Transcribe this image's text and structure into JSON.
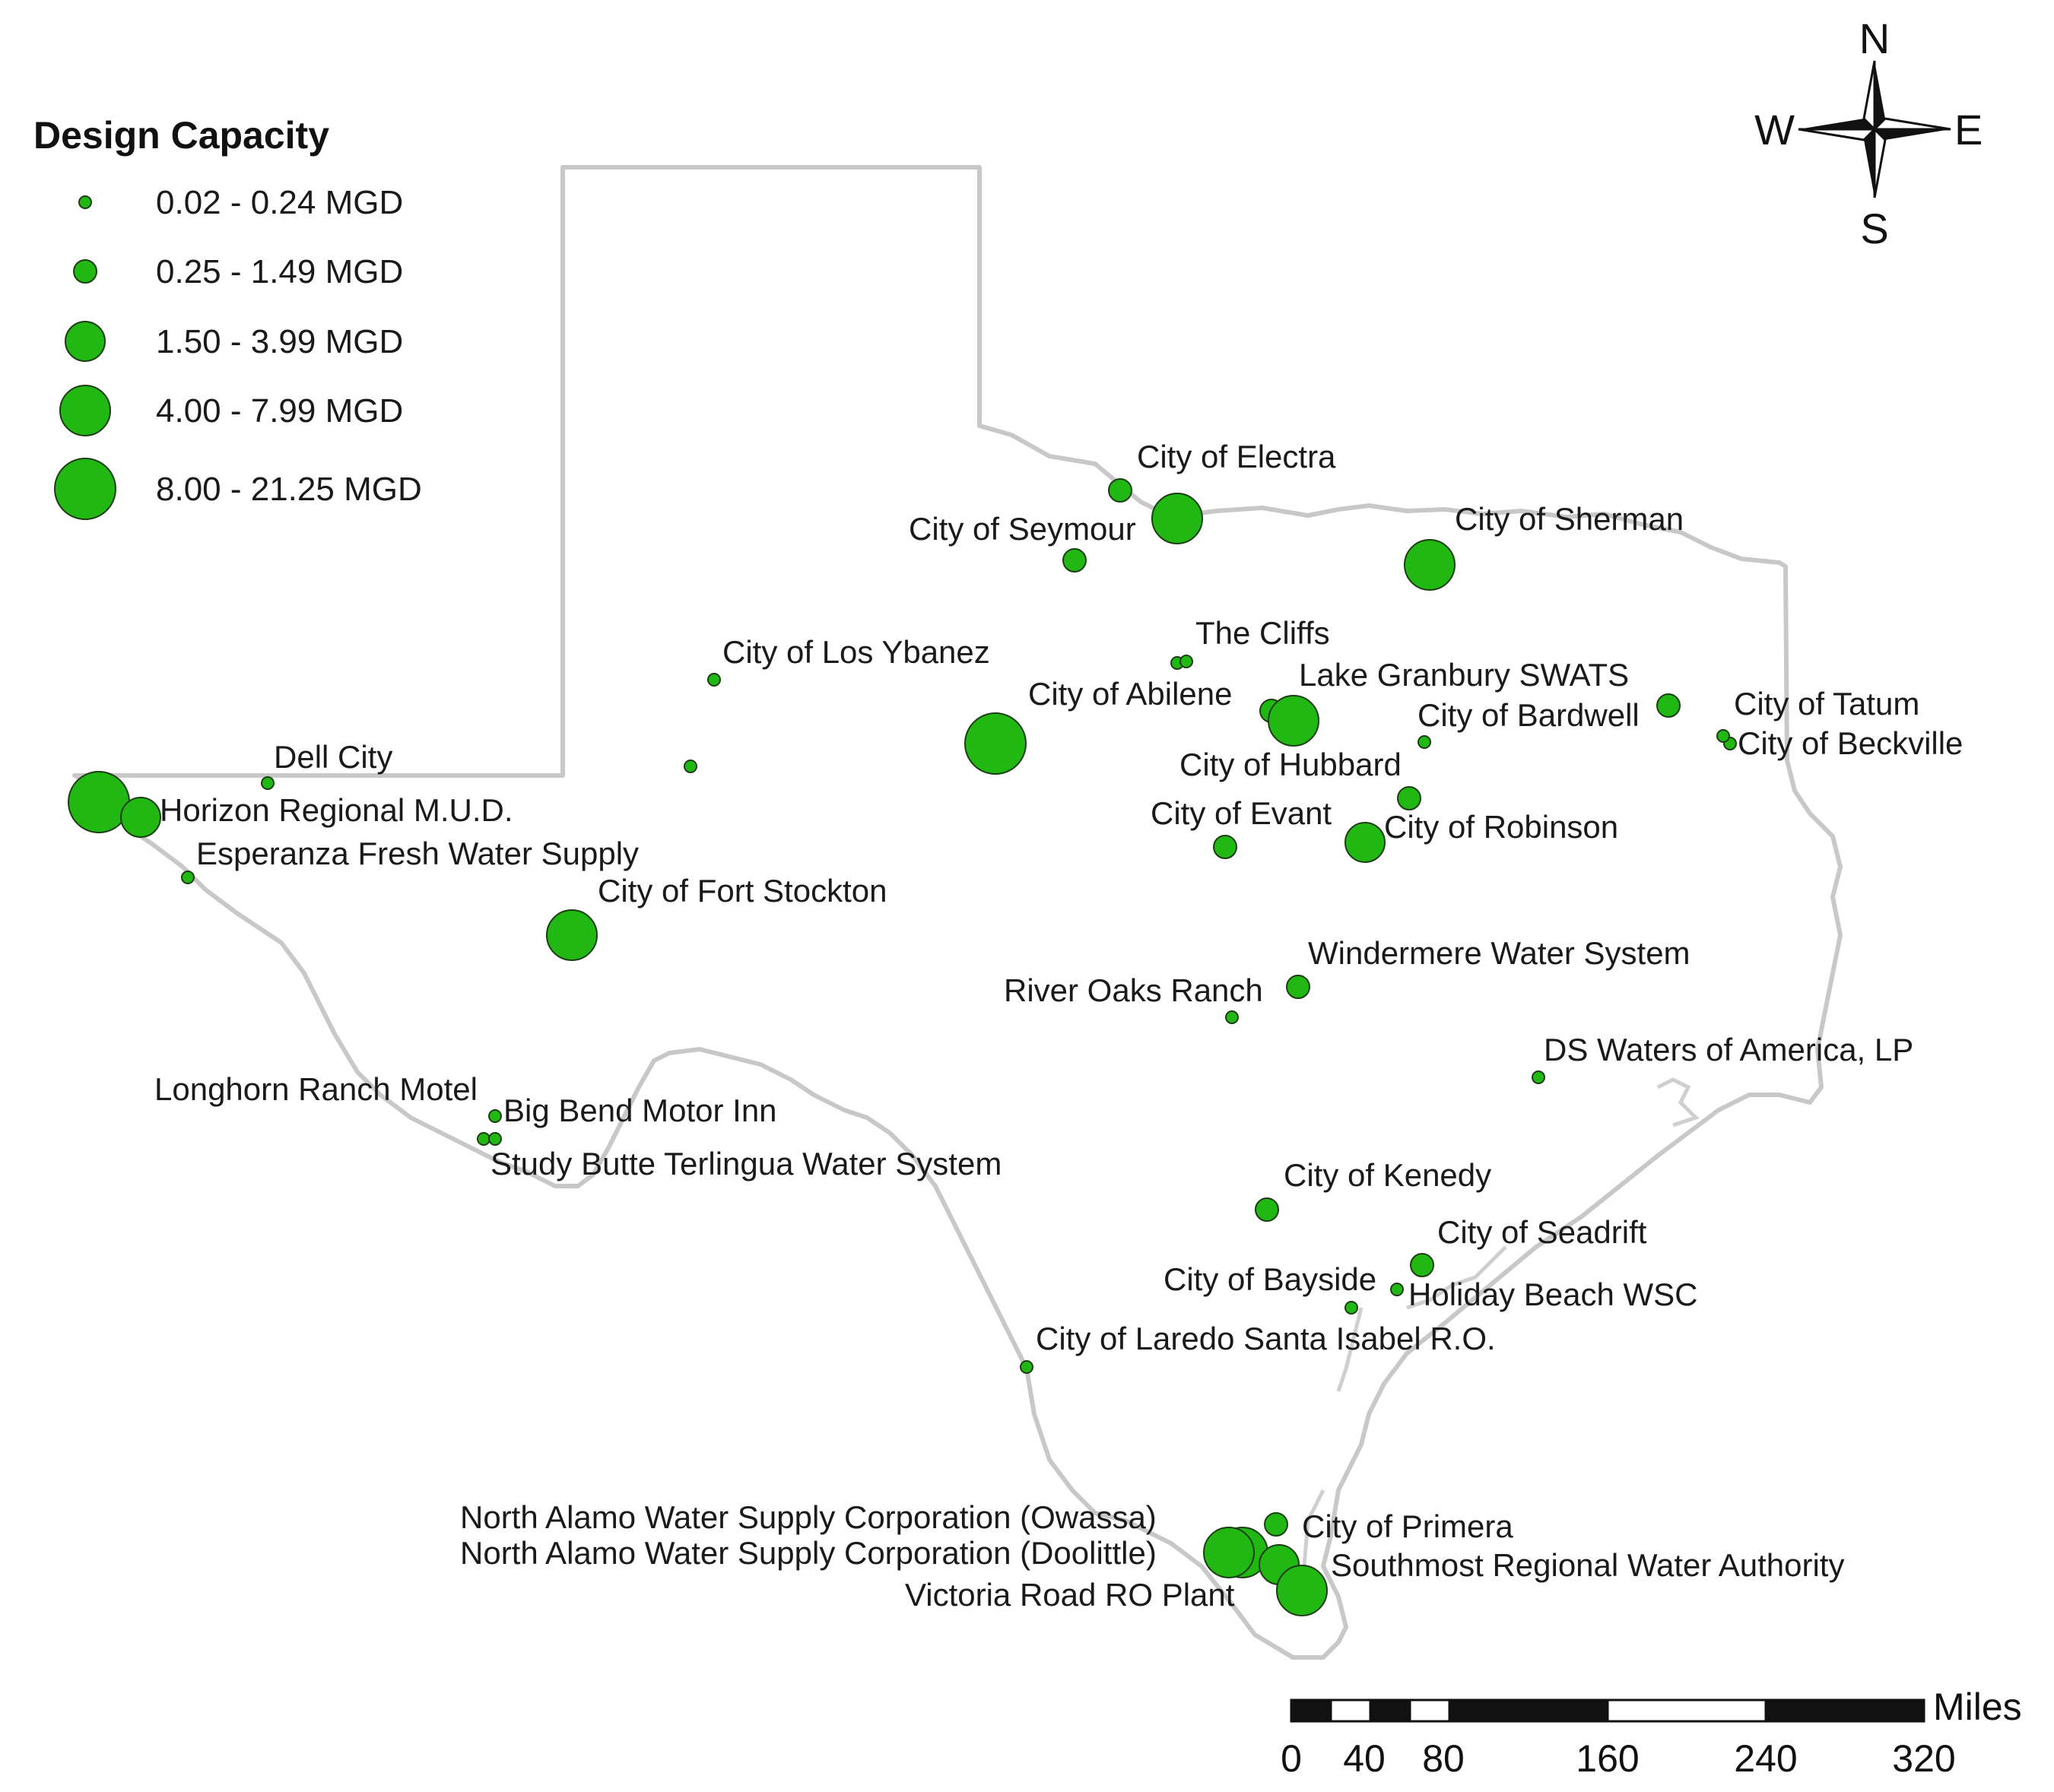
{
  "legend": {
    "title": "Design  Capacity",
    "classes": [
      {
        "label": "0.02 - 0.24 MGD",
        "size_class": 1
      },
      {
        "label": "0.25 - 1.49 MGD",
        "size_class": 2
      },
      {
        "label": "1.50 - 3.99 MGD",
        "size_class": 3
      },
      {
        "label": "4.00 - 7.99 MGD",
        "size_class": 4
      },
      {
        "label": "8.00 - 21.25 MGD",
        "size_class": 5
      }
    ]
  },
  "compass": {
    "north": "N",
    "south": "S",
    "east": "E",
    "west": "W"
  },
  "scale_bar": {
    "unit": "Miles",
    "ticks": [
      "0",
      "40",
      "80",
      "160",
      "240",
      "320"
    ]
  },
  "colors": {
    "plant_fill": "#22b814",
    "plant_stroke": "#1b3d12",
    "border": "#c8c8c8",
    "text": "#1a1a1a"
  },
  "places": [
    {
      "id": "city-of-electra",
      "label": "City of Electra",
      "size_class": 2
    },
    {
      "id": "city-of-seymour",
      "label": "City of Seymour",
      "size_class": 2
    },
    {
      "id": "city-of-sherman",
      "label": "City of Sherman",
      "size_class": 4
    },
    {
      "id": "the-cliffs",
      "label": "The Cliffs",
      "size_class": 1
    },
    {
      "id": "city-of-los-ybanez",
      "label": "City of Los Ybanez",
      "size_class": 1
    },
    {
      "id": "lake-granbury-swats",
      "label": "Lake Granbury SWATS",
      "size_class": 4
    },
    {
      "id": "city-of-abilene",
      "label": "City of Abilene",
      "size_class": 5
    },
    {
      "id": "city-of-tatum",
      "label": "City of Tatum",
      "size_class": 2
    },
    {
      "id": "city-of-bardwell",
      "label": "City of Bardwell",
      "size_class": 1
    },
    {
      "id": "city-of-beckville",
      "label": "City of Beckville",
      "size_class": 1
    },
    {
      "id": "dell-city",
      "label": "Dell City",
      "size_class": 1
    },
    {
      "id": "city-of-hubbard",
      "label": "City of Hubbard",
      "size_class": 2
    },
    {
      "id": "horizon-regional-mud",
      "label": "Horizon Regional M.U.D.",
      "size_class": 3
    },
    {
      "id": "esperanza-fresh-water-supply",
      "label": "Esperanza Fresh Water Supply",
      "size_class": 1
    },
    {
      "id": "city-of-evant",
      "label": "City of Evant",
      "size_class": 2
    },
    {
      "id": "city-of-robinson",
      "label": "City of Robinson",
      "size_class": 3
    },
    {
      "id": "city-of-fort-stockton",
      "label": "City of Fort Stockton",
      "size_class": 4
    },
    {
      "id": "windermere-water-system",
      "label": "Windermere Water System",
      "size_class": 2
    },
    {
      "id": "river-oaks-ranch",
      "label": "River Oaks Ranch",
      "size_class": 1
    },
    {
      "id": "ds-waters-of-america-lp",
      "label": "DS Waters of America, LP",
      "size_class": 1
    },
    {
      "id": "longhorn-ranch-motel",
      "label": "Longhorn Ranch Motel",
      "size_class": 1
    },
    {
      "id": "big-bend-motor-inn",
      "label": "Big Bend Motor Inn",
      "size_class": 1
    },
    {
      "id": "study-butte-terlingua-water-system",
      "label": "Study Butte Terlingua Water System",
      "size_class": 1
    },
    {
      "id": "city-of-kenedy",
      "label": "City of Kenedy",
      "size_class": 2
    },
    {
      "id": "city-of-seadrift",
      "label": "City of Seadrift",
      "size_class": 2
    },
    {
      "id": "city-of-bayside",
      "label": "City of Bayside",
      "size_class": 1
    },
    {
      "id": "holiday-beach-wsc",
      "label": "Holiday Beach WSC",
      "size_class": 1
    },
    {
      "id": "city-of-laredo-santa-isabel-ro",
      "label": "City of Laredo Santa Isabel R.O.",
      "size_class": 1
    },
    {
      "id": "north-alamo-owassa",
      "label": "North Alamo Water Supply Corporation (Owassa)",
      "size_class": 4
    },
    {
      "id": "north-alamo-doolittle",
      "label": "North Alamo Water Supply Corporation (Doolittle)",
      "size_class": 4
    },
    {
      "id": "city-of-primera",
      "label": "City of Primera",
      "size_class": 2
    },
    {
      "id": "southmost-regional-water-authority",
      "label": "Southmost Regional Water Authority",
      "size_class": 3
    },
    {
      "id": "victoria-road-ro-plant",
      "label": "Victoria Road RO Plant",
      "size_class": 4
    }
  ]
}
